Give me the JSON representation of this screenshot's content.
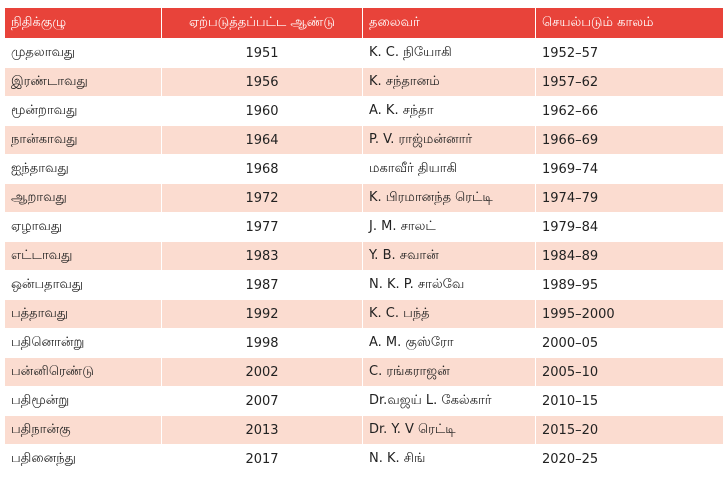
{
  "table": {
    "headers": [
      "நிதிக்குழு",
      "ஏற்படுத்தப்பட்ட ஆண்டு",
      "தலைவர்",
      "செயல்படும் காலம்"
    ],
    "rows": [
      {
        "commission": "முதலாவது",
        "year": "1951",
        "chairman": "K. C. நியோகி",
        "period": "1952–57"
      },
      {
        "commission": "இரண்டாவது",
        "year": "1956",
        "chairman": "K. சந்தானம்",
        "period": "1957–62"
      },
      {
        "commission": "மூன்றாவது",
        "year": "1960",
        "chairman": "A. K. சந்தா",
        "period": "1962–66"
      },
      {
        "commission": "நான்காவது",
        "year": "1964",
        "chairman": "P. V. ராஜ்மன்னார்",
        "period": "1966–69"
      },
      {
        "commission": "ஐந்தாவது",
        "year": "1968",
        "chairman": "மகாவீர் தியாகி",
        "period": "1969–74"
      },
      {
        "commission": "ஆறாவது",
        "year": "1972",
        "chairman": "K. பிரமானந்த ரெட்டி",
        "period": "1974–79"
      },
      {
        "commission": "ஏழாவது",
        "year": "1977",
        "chairman": "J. M. சாலட்",
        "period": "1979–84"
      },
      {
        "commission": "எட்டாவது",
        "year": "1983",
        "chairman": "Y. B. சவான்",
        "period": "1984–89"
      },
      {
        "commission": "ஒன்பதாவது",
        "year": "1987",
        "chairman": "N. K. P. சால்வே",
        "period": "1989–95"
      },
      {
        "commission": "பத்தாவது",
        "year": "1992",
        "chairman": "K. C. பந்த்",
        "period": "1995–2000"
      },
      {
        "commission": "பதினொன்று",
        "year": "1998",
        "chairman": "A. M. குஸ்ரோ",
        "period": "2000–05"
      },
      {
        "commission": "பன்னிரெண்டு",
        "year": "2002",
        "chairman": "C. ரங்கராஜன்",
        "period": "2005–10"
      },
      {
        "commission": "பதிமூன்று",
        "year": "2007",
        "chairman": "Dr.வஜய் L. கேல்கார்",
        "period": "2010–15"
      },
      {
        "commission": "பதிநான்கு",
        "year": "2013",
        "chairman": "Dr. Y. V ரெட்டி",
        "period": "2015–20"
      },
      {
        "commission": "பதினைந்து",
        "year": "2017",
        "chairman": "N. K. சிங்",
        "period": "2020–25"
      }
    ]
  },
  "colors": {
    "header_bg": "#e8433a",
    "header_text": "#ffffff",
    "stripe": "#fbdcd0",
    "row_bg": "#ffffff"
  }
}
